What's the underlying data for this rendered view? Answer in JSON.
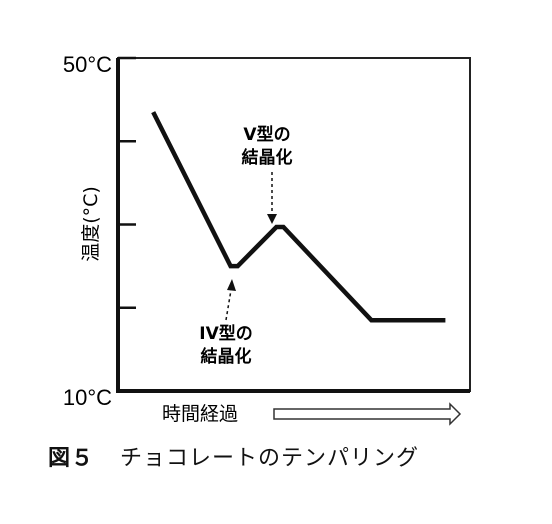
{
  "chart_data": {
    "type": "line",
    "ylabel": "温度(°C)",
    "xlabel": "時間経過",
    "y_tick_labels": [
      "50°C",
      "10°C"
    ],
    "ylim": [
      10,
      50
    ],
    "xlim": [
      0,
      100
    ],
    "y_ticks": [
      10,
      20,
      30,
      40,
      50
    ],
    "series": [
      {
        "x": [
          10,
          32,
          34,
          45,
          47,
          72,
          93
        ],
        "y": [
          43.5,
          25,
          25,
          29.7,
          29.7,
          18.5,
          18.5
        ]
      }
    ],
    "annotations": [
      {
        "line1": "V型の",
        "line2": "結晶化",
        "target_x": 46,
        "target_y": 29.7,
        "arrow": "down"
      },
      {
        "line1": "IV型の",
        "line2": "結晶化",
        "target_x": 33,
        "target_y": 25,
        "arrow": "up"
      }
    ],
    "grid": false
  },
  "caption": {
    "number": "図５",
    "text": "チョコレートのテンパリング"
  }
}
